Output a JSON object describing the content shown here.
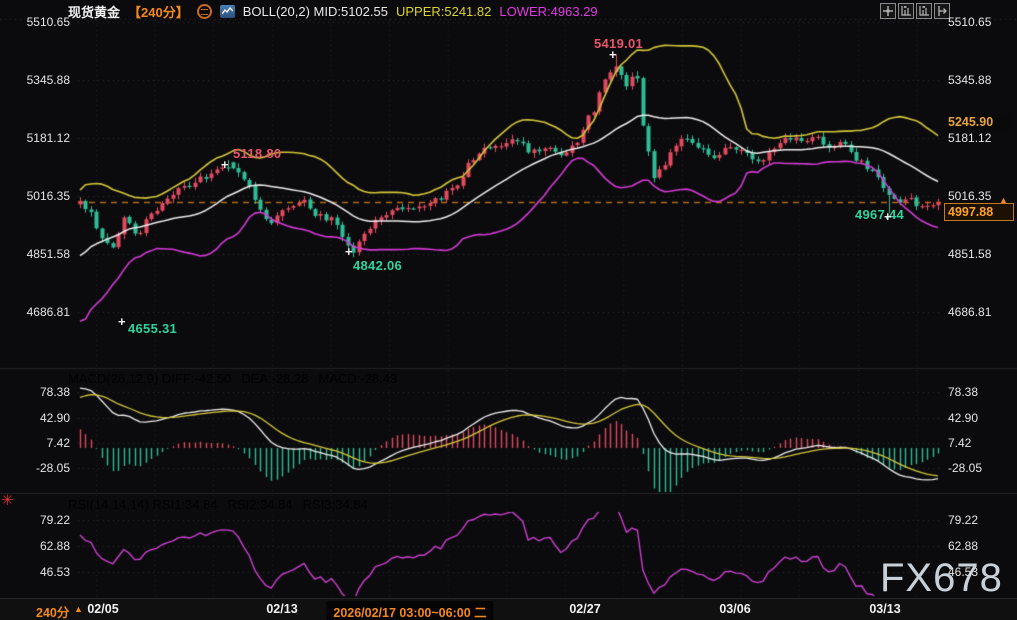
{
  "header": {
    "symbol": "现货黄金",
    "period": "【240分】",
    "boll_mid": "BOLL(20,2) MID:5102.55",
    "boll_upper": "UPPER:5241.82",
    "boll_lower": "LOWER:4963.29"
  },
  "toolbar": {
    "icons": [
      "crosshair-move-icon",
      "scale-compress-icon",
      "scale-expand-icon",
      "go-to-latest-icon"
    ]
  },
  "main_panel": {
    "annotations": [
      {
        "text": "5419.01",
        "color": "red"
      },
      {
        "text": "5118.80",
        "color": "red"
      },
      {
        "text": "4842.06",
        "color": "green"
      },
      {
        "text": "4655.31",
        "color": "green"
      },
      {
        "text": "4967.44",
        "color": "green"
      }
    ],
    "badges": {
      "upper_band": "5245.90",
      "last_price": "4997.88"
    }
  },
  "macd_panel": {
    "title": "MACD(26,12,9) DIFF:-42.50",
    "dea": "DEA:-28.28",
    "macd": "MACD:-28.43"
  },
  "rsi_panel": {
    "title": "RSI(14,14,14) RSI1:34.84",
    "rsi2": "RSI2:34.84",
    "rsi3": "RSI3:34.84"
  },
  "bottom_bar": {
    "period": "240分",
    "dates": [
      "02/05",
      "02/13",
      "02/27",
      "03/06",
      "03/13"
    ],
    "highlight_datetime": "2026/02/17 03:00~06:00 二"
  },
  "watermark": "FX678",
  "colors": {
    "up": "#e34a5f",
    "down": "#2ebd95",
    "boll_upper": "#d4c63a",
    "boll_mid": "#ececec",
    "boll_lower": "#d43ad4",
    "accent_orange": "#f5881f",
    "price_line": "#b36b12",
    "diff_line": "#ececec",
    "dea_line": "#d4c63a",
    "rsi_line": "#cc3fd0",
    "grid": "#2d2d31",
    "axis_text": "#e4e4e4"
  },
  "chart_data": {
    "type": "candlestick",
    "instrument": "现货黄金 (Spot Gold)",
    "interval": "240min",
    "price_axis": [
      "5510.65",
      "5345.88",
      "5181.12",
      "5016.35",
      "4851.58",
      "4686.81"
    ],
    "macd_axis": [
      "78.38",
      "42.90",
      "7.42",
      "-28.05"
    ],
    "rsi_axis": [
      "79.22",
      "62.88",
      "46.53"
    ],
    "x_dates": [
      "02/05",
      "02/13",
      "02/27",
      "03/06",
      "03/13"
    ],
    "selected_bar": "2026/02/17 03:00~06:00 二",
    "indicators": {
      "boll": {
        "period": 20,
        "dev": 2,
        "mid": 5102.55,
        "upper": 5241.82,
        "lower": 4963.29,
        "upper_right_edge": 5245.9
      },
      "macd": {
        "fast": 12,
        "slow": 26,
        "signal": 9,
        "diff": -42.5,
        "dea": -28.28,
        "macd": -28.43
      },
      "rsi": {
        "periods": [
          14,
          14,
          14
        ],
        "rsi1": 34.84,
        "rsi2": 34.84,
        "rsi3": 34.84
      }
    },
    "key_points": {
      "period_high": 5419.01,
      "swing_high": 5118.8,
      "period_low_candles": 4842.06,
      "lower_band_low": 4655.31,
      "recent_low": 4967.44,
      "last_price": 4997.88
    },
    "close_path": [
      [
        0.0,
        4995
      ],
      [
        0.0116,
        4975
      ],
      [
        0.0255,
        4890
      ],
      [
        0.0394,
        4868
      ],
      [
        0.051,
        4958
      ],
      [
        0.0661,
        4905
      ],
      [
        0.0835,
        4966
      ],
      [
        0.1009,
        5012
      ],
      [
        0.1241,
        5046
      ],
      [
        0.1473,
        5072
      ],
      [
        0.174,
        5106
      ],
      [
        0.1937,
        5062
      ],
      [
        0.2088,
        4984
      ],
      [
        0.2204,
        4940
      ],
      [
        0.2401,
        4988
      ],
      [
        0.2575,
        5002
      ],
      [
        0.2749,
        4966
      ],
      [
        0.2923,
        4951
      ],
      [
        0.3097,
        4884
      ],
      [
        0.319,
        4852
      ],
      [
        0.3306,
        4906
      ],
      [
        0.3457,
        4950
      ],
      [
        0.3689,
        4976
      ],
      [
        0.3921,
        4988
      ],
      [
        0.4153,
        5004
      ],
      [
        0.4385,
        5052
      ],
      [
        0.4559,
        5112
      ],
      [
        0.4733,
        5150
      ],
      [
        0.4907,
        5162
      ],
      [
        0.5081,
        5176
      ],
      [
        0.5255,
        5142
      ],
      [
        0.5429,
        5152
      ],
      [
        0.5603,
        5132
      ],
      [
        0.5777,
        5162
      ],
      [
        0.5951,
        5252
      ],
      [
        0.6125,
        5342
      ],
      [
        0.623,
        5392
      ],
      [
        0.6357,
        5334
      ],
      [
        0.6473,
        5362
      ],
      [
        0.6589,
        5182
      ],
      [
        0.6671,
        5062
      ],
      [
        0.6787,
        5102
      ],
      [
        0.6903,
        5152
      ],
      [
        0.7054,
        5182
      ],
      [
        0.7228,
        5152
      ],
      [
        0.7402,
        5122
      ],
      [
        0.7576,
        5162
      ],
      [
        0.775,
        5142
      ],
      [
        0.7924,
        5112
      ],
      [
        0.8098,
        5152
      ],
      [
        0.8272,
        5182
      ],
      [
        0.8446,
        5162
      ],
      [
        0.8562,
        5192
      ],
      [
        0.8736,
        5152
      ],
      [
        0.891,
        5172
      ],
      [
        0.9061,
        5122
      ],
      [
        0.92,
        5092
      ],
      [
        0.9316,
        5062
      ],
      [
        0.9432,
        5012
      ],
      [
        0.9548,
        4992
      ],
      [
        0.9664,
        5012
      ],
      [
        0.978,
        4986
      ],
      [
        0.9896,
        4992
      ],
      [
        1.0,
        4997.88
      ]
    ],
    "anchors": [
      {
        "t": 0.623,
        "type": "high",
        "value": 5419.01
      },
      {
        "t": 0.174,
        "type": "high",
        "value": 5118.8
      },
      {
        "t": 0.319,
        "type": "low",
        "value": 4842.06
      },
      {
        "t": 0.9432,
        "type": "low",
        "value": 4967.44
      },
      {
        "t": 1.0,
        "type": "close",
        "value": 4997.88
      }
    ],
    "render": {
      "seed": 42,
      "candles": 158,
      "pre_candles": 34
    }
  }
}
